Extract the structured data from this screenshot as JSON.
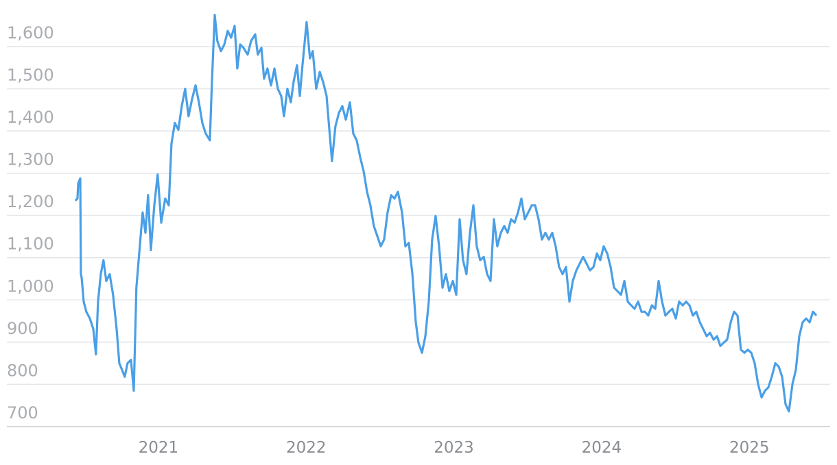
{
  "chart_data": {
    "type": "line",
    "x": [
      2020.438,
      2020.452,
      2020.457,
      2020.471,
      2020.475,
      2020.48,
      2020.494,
      2020.512,
      2020.536,
      2020.559,
      2020.577,
      2020.591,
      2020.61,
      2020.628,
      2020.647,
      2020.67,
      2020.693,
      2020.717,
      2020.735,
      2020.754,
      2020.772,
      2020.791,
      2020.814,
      2020.833,
      2020.851,
      2020.87,
      2020.893,
      2020.912,
      2020.93,
      2020.949,
      2020.972,
      2020.995,
      2021.019,
      2021.046,
      2021.07,
      2021.088,
      2021.111,
      2021.135,
      2021.158,
      2021.181,
      2021.204,
      2021.228,
      2021.251,
      2021.274,
      2021.297,
      2021.32,
      2021.348,
      2021.362,
      2021.381,
      2021.399,
      2021.423,
      2021.446,
      2021.469,
      2021.492,
      2021.516,
      2021.534,
      2021.553,
      2021.576,
      2021.604,
      2021.627,
      2021.655,
      2021.673,
      2021.697,
      2021.715,
      2021.738,
      2021.762,
      2021.785,
      2021.808,
      2021.831,
      2021.85,
      2021.873,
      2021.896,
      2021.915,
      2021.938,
      2021.957,
      2021.975,
      2022.003,
      2022.026,
      2022.045,
      2022.068,
      2022.092,
      2022.115,
      2022.138,
      2022.157,
      2022.175,
      2022.198,
      2022.222,
      2022.245,
      2022.268,
      2022.296,
      2022.319,
      2022.342,
      2022.366,
      2022.389,
      2022.412,
      2022.435,
      2022.458,
      2022.482,
      2022.505,
      2022.528,
      2022.551,
      2022.575,
      2022.598,
      2022.621,
      2022.649,
      2022.672,
      2022.695,
      2022.719,
      2022.742,
      2022.76,
      2022.784,
      2022.807,
      2022.83,
      2022.853,
      2022.876,
      2022.9,
      2022.923,
      2022.946,
      2022.969,
      2022.993,
      2023.016,
      2023.039,
      2023.062,
      2023.085,
      2023.109,
      2023.132,
      2023.155,
      2023.178,
      2023.202,
      2023.225,
      2023.248,
      2023.271,
      2023.294,
      2023.318,
      2023.341,
      2023.364,
      2023.387,
      2023.411,
      2023.434,
      2023.457,
      2023.48,
      2023.503,
      2023.527,
      2023.55,
      2023.573,
      2023.596,
      2023.619,
      2023.643,
      2023.666,
      2023.689,
      2023.712,
      2023.736,
      2023.759,
      2023.782,
      2023.805,
      2023.829,
      2023.852,
      2023.875,
      2023.898,
      2023.921,
      2023.945,
      2023.968,
      2023.991,
      2024.014,
      2024.038,
      2024.061,
      2024.084,
      2024.107,
      2024.131,
      2024.154,
      2024.177,
      2024.2,
      2024.223,
      2024.247,
      2024.27,
      2024.293,
      2024.316,
      2024.34,
      2024.363,
      2024.386,
      2024.409,
      2024.432,
      2024.456,
      2024.479,
      2024.502,
      2024.525,
      2024.549,
      2024.572,
      2024.595,
      2024.618,
      2024.641,
      2024.665,
      2024.688,
      2024.711,
      2024.734,
      2024.758,
      2024.781,
      2024.804,
      2024.827,
      2024.85,
      2024.874,
      2024.897,
      2024.92,
      2024.943,
      2024.967,
      2024.99,
      2025.013,
      2025.036,
      2025.059,
      2025.083,
      2025.106,
      2025.129,
      2025.152,
      2025.176,
      2025.199,
      2025.222,
      2025.245,
      2025.268,
      2025.292,
      2025.315,
      2025.338,
      2025.361,
      2025.385,
      2025.408,
      2025.431,
      2025.454
    ],
    "series": [
      {
        "color": "#4a9fe6",
        "values": [
          1235,
          1240,
          1276,
          1288,
          1061,
          1053,
          996,
          972,
          956,
          931,
          871,
          996,
          1061,
          1094,
          1045,
          1061,
          1012,
          931,
          850,
          834,
          818,
          850,
          858,
          785,
          1029,
          1110,
          1207,
          1159,
          1248,
          1118,
          1224,
          1297,
          1183,
          1240,
          1224,
          1370,
          1419,
          1403,
          1459,
          1500,
          1435,
          1476,
          1508,
          1468,
          1419,
          1394,
          1378,
          1516,
          1675,
          1613,
          1589,
          1605,
          1637,
          1621,
          1649,
          1548,
          1605,
          1597,
          1581,
          1613,
          1629,
          1581,
          1597,
          1524,
          1548,
          1508,
          1548,
          1500,
          1483,
          1435,
          1500,
          1468,
          1516,
          1556,
          1483,
          1556,
          1658,
          1572,
          1589,
          1500,
          1540,
          1516,
          1483,
          1402,
          1329,
          1411,
          1443,
          1459,
          1427,
          1468,
          1394,
          1378,
          1337,
          1305,
          1256,
          1224,
          1175,
          1151,
          1127,
          1143,
          1207,
          1248,
          1240,
          1256,
          1207,
          1127,
          1135,
          1061,
          948,
          899,
          875,
          914,
          996,
          1143,
          1199,
          1127,
          1029,
          1061,
          1021,
          1045,
          1012,
          1191,
          1094,
          1061,
          1159,
          1224,
          1127,
          1094,
          1102,
          1061,
          1045,
          1191,
          1127,
          1159,
          1175,
          1159,
          1191,
          1183,
          1207,
          1240,
          1191,
          1207,
          1224,
          1224,
          1191,
          1143,
          1159,
          1143,
          1159,
          1127,
          1078,
          1061,
          1078,
          996,
          1045,
          1070,
          1086,
          1102,
          1086,
          1070,
          1078,
          1110,
          1094,
          1127,
          1110,
          1078,
          1029,
          1021,
          1012,
          1045,
          996,
          987,
          979,
          996,
          972,
          972,
          963,
          987,
          979,
          1045,
          996,
          963,
          972,
          979,
          956,
          996,
          987,
          996,
          987,
          963,
          972,
          947,
          931,
          914,
          922,
          906,
          914,
          891,
          899,
          906,
          947,
          972,
          963,
          882,
          875,
          882,
          875,
          850,
          801,
          769,
          785,
          793,
          818,
          850,
          842,
          818,
          753,
          736,
          801,
          834,
          914,
          947,
          956,
          947,
          972,
          963
        ]
      }
    ],
    "xlim": [
      2019.974,
      2025.547
    ],
    "xticks": [
      2021,
      2022,
      2023,
      2024,
      2025
    ],
    "ylim": [
      700,
      1694
    ],
    "yticks": [
      {
        "value": 700,
        "label": "700"
      },
      {
        "value": 800,
        "label": "800"
      },
      {
        "value": 900,
        "label": "900"
      },
      {
        "value": 1000,
        "label": "1,000"
      },
      {
        "value": 1100,
        "label": "1,100"
      },
      {
        "value": 1200,
        "label": "1,200"
      },
      {
        "value": 1300,
        "label": "1,300"
      },
      {
        "value": 1400,
        "label": "1,400"
      },
      {
        "value": 1500,
        "label": "1,500"
      },
      {
        "value": 1600,
        "label": "1,600"
      }
    ],
    "grid": true
  }
}
